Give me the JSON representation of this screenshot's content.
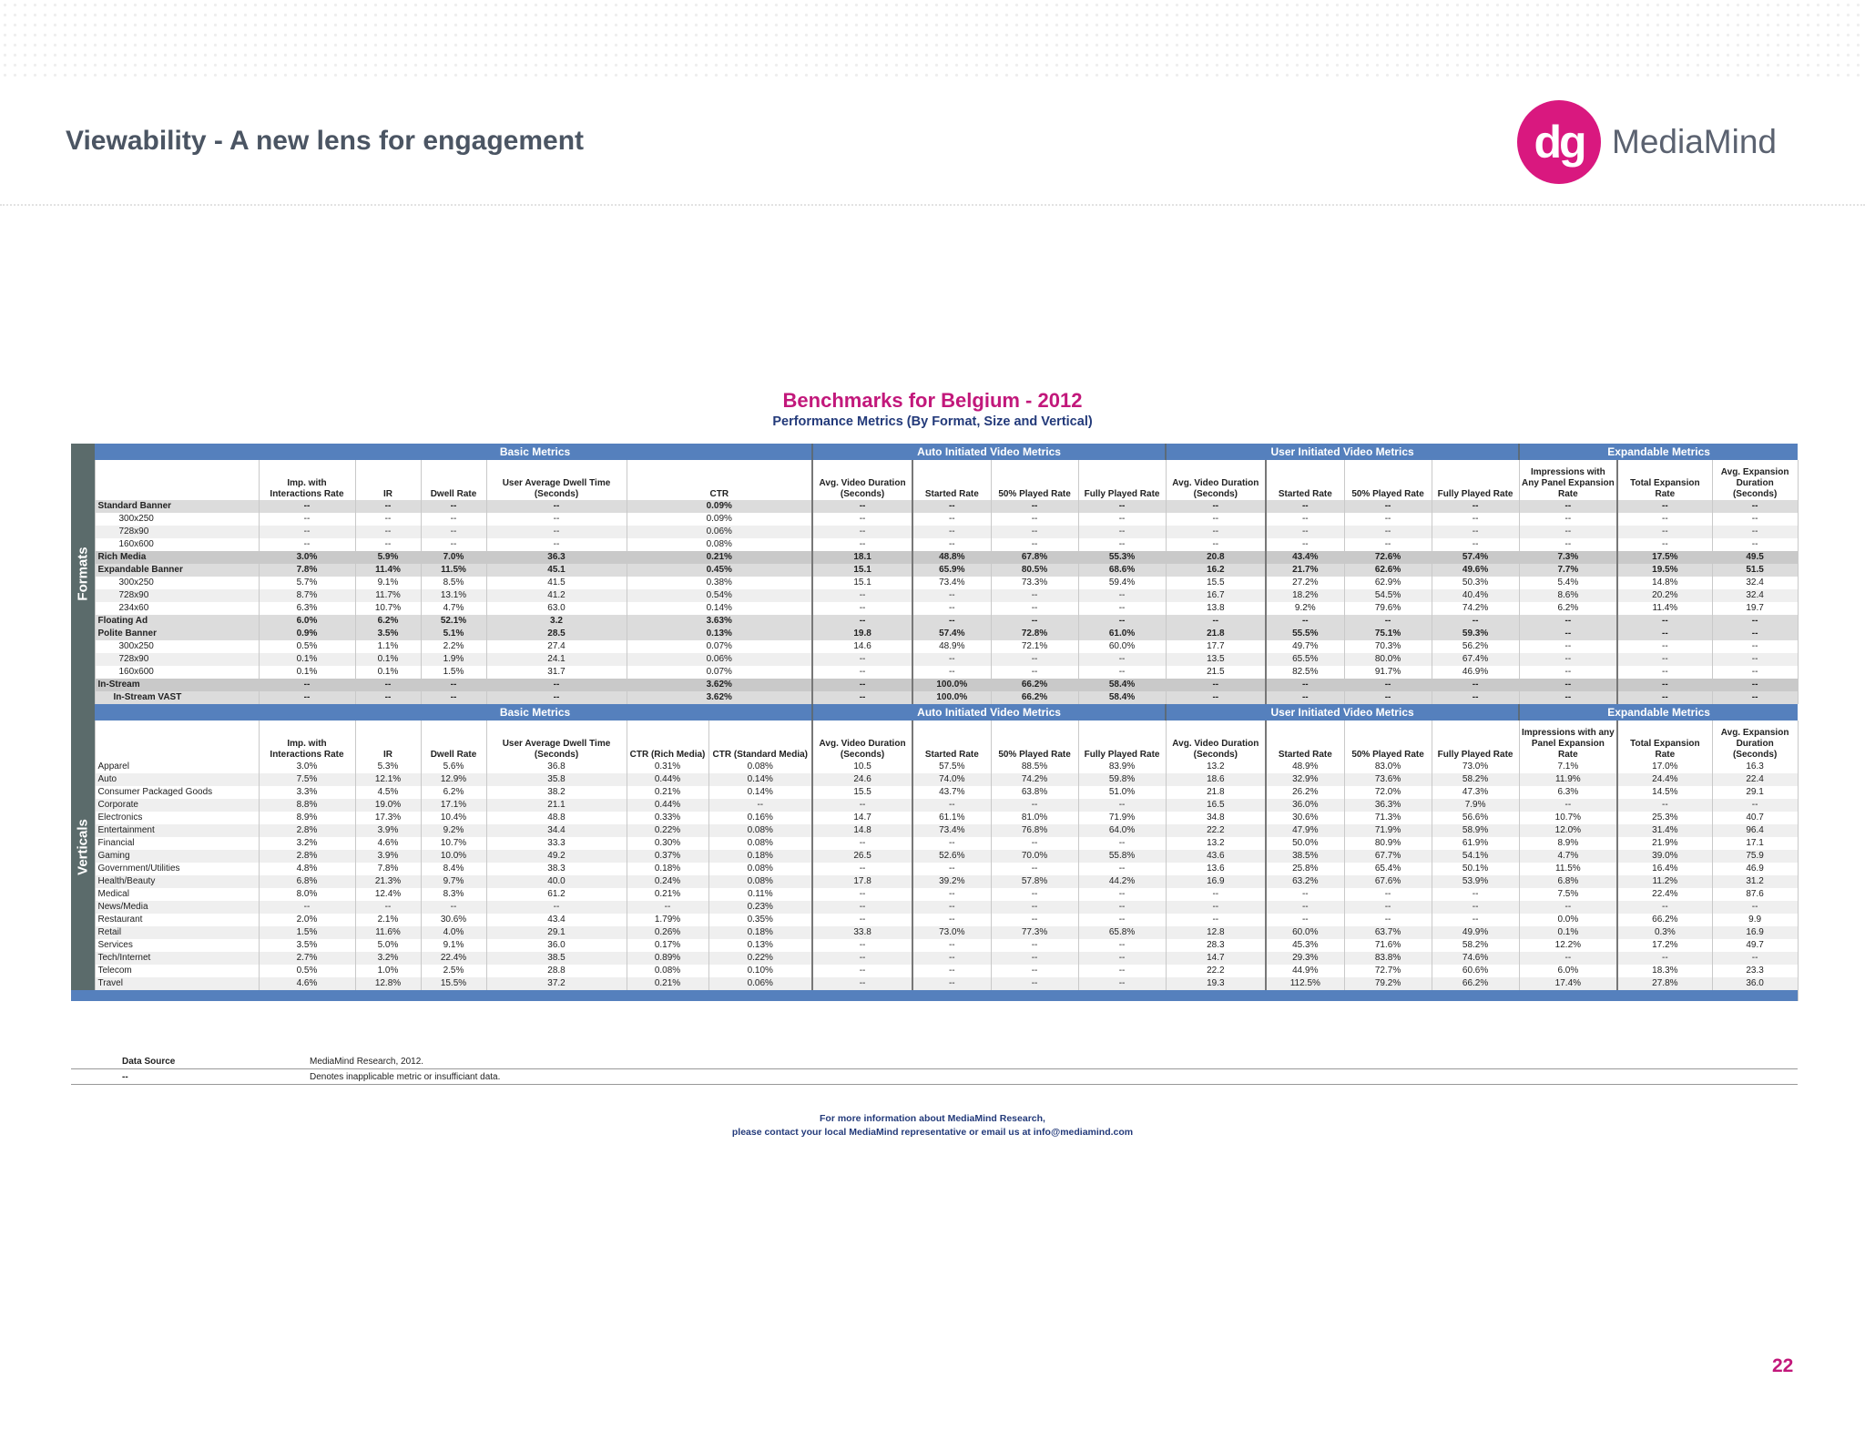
{
  "header": {
    "title": "Viewability - A new lens for engagement"
  },
  "logo": {
    "mark": "dg",
    "name": "MediaMind",
    "brand_color": "#d9187f"
  },
  "benchmark": {
    "title": "Benchmarks for Belgium - 2012",
    "subtitle": "Performance Metrics  (By Format, Size and Vertical)"
  },
  "section_labels": [
    "Basic Metrics",
    "Auto Initiated Video Metrics",
    "User Initiated Video Metrics",
    "Expandable Metrics"
  ],
  "side_labels": {
    "formats": "Formats",
    "verticals": "Verticals"
  },
  "formats": {
    "headers": [
      "",
      "Imp. with Interactions Rate",
      "IR",
      "Dwell Rate",
      "User Average Dwell Time (Seconds)",
      "CTR",
      "Avg. Video Duration (Seconds)",
      "Started Rate",
      "50% Played Rate",
      "Fully Played Rate",
      "Avg. Video Duration (Seconds)",
      "Started Rate",
      "50% Played Rate",
      "Fully Played Rate",
      "Impressions with Any Panel Expansion Rate",
      "Total Expansion Rate",
      "Avg. Expansion Duration (Seconds)"
    ],
    "rows": [
      {
        "style": "bold",
        "indent": 0,
        "cells": [
          "Standard Banner",
          "--",
          "--",
          "--",
          "--",
          "0.09%",
          "--",
          "--",
          "--",
          "--",
          "--",
          "--",
          "--",
          "--",
          "--",
          "--",
          "--"
        ]
      },
      {
        "style": "r0",
        "indent": 1,
        "cells": [
          "300x250",
          "--",
          "--",
          "--",
          "--",
          "0.09%",
          "--",
          "--",
          "--",
          "--",
          "--",
          "--",
          "--",
          "--",
          "--",
          "--",
          "--"
        ]
      },
      {
        "style": "r1",
        "indent": 1,
        "cells": [
          "728x90",
          "--",
          "--",
          "--",
          "--",
          "0.06%",
          "--",
          "--",
          "--",
          "--",
          "--",
          "--",
          "--",
          "--",
          "--",
          "--",
          "--"
        ]
      },
      {
        "style": "r0",
        "indent": 1,
        "cells": [
          "160x600",
          "--",
          "--",
          "--",
          "--",
          "0.08%",
          "--",
          "--",
          "--",
          "--",
          "--",
          "--",
          "--",
          "--",
          "--",
          "--",
          "--"
        ]
      },
      {
        "style": "bold2",
        "indent": 0,
        "cells": [
          "Rich Media",
          "3.0%",
          "5.9%",
          "7.0%",
          "36.3",
          "0.21%",
          "18.1",
          "48.8%",
          "67.8%",
          "55.3%",
          "20.8",
          "43.4%",
          "72.6%",
          "57.4%",
          "7.3%",
          "17.5%",
          "49.5"
        ]
      },
      {
        "style": "bold",
        "indent": 0,
        "cells": [
          "Expandable Banner",
          "7.8%",
          "11.4%",
          "11.5%",
          "45.1",
          "0.45%",
          "15.1",
          "65.9%",
          "80.5%",
          "68.6%",
          "16.2",
          "21.7%",
          "62.6%",
          "49.6%",
          "7.7%",
          "19.5%",
          "51.5"
        ]
      },
      {
        "style": "r0",
        "indent": 1,
        "cells": [
          "300x250",
          "5.7%",
          "9.1%",
          "8.5%",
          "41.5",
          "0.38%",
          "15.1",
          "73.4%",
          "73.3%",
          "59.4%",
          "15.5",
          "27.2%",
          "62.9%",
          "50.3%",
          "5.4%",
          "14.8%",
          "32.4"
        ]
      },
      {
        "style": "r1",
        "indent": 1,
        "cells": [
          "728x90",
          "8.7%",
          "11.7%",
          "13.1%",
          "41.2",
          "0.54%",
          "--",
          "--",
          "--",
          "--",
          "16.7",
          "18.2%",
          "54.5%",
          "40.4%",
          "8.6%",
          "20.2%",
          "32.4"
        ]
      },
      {
        "style": "r0",
        "indent": 1,
        "cells": [
          "234x60",
          "6.3%",
          "10.7%",
          "4.7%",
          "63.0",
          "0.14%",
          "--",
          "--",
          "--",
          "--",
          "13.8",
          "9.2%",
          "79.6%",
          "74.2%",
          "6.2%",
          "11.4%",
          "19.7"
        ]
      },
      {
        "style": "bold",
        "indent": 0,
        "cells": [
          "Floating Ad",
          "6.0%",
          "6.2%",
          "52.1%",
          "3.2",
          "3.63%",
          "--",
          "--",
          "--",
          "--",
          "--",
          "--",
          "--",
          "--",
          "--",
          "--",
          "--"
        ]
      },
      {
        "style": "bold",
        "indent": 0,
        "cells": [
          "Polite Banner",
          "0.9%",
          "3.5%",
          "5.1%",
          "28.5",
          "0.13%",
          "19.8",
          "57.4%",
          "72.8%",
          "61.0%",
          "21.8",
          "55.5%",
          "75.1%",
          "59.3%",
          "--",
          "--",
          "--"
        ]
      },
      {
        "style": "r0",
        "indent": 1,
        "cells": [
          "300x250",
          "0.5%",
          "1.1%",
          "2.2%",
          "27.4",
          "0.07%",
          "14.6",
          "48.9%",
          "72.1%",
          "60.0%",
          "17.7",
          "49.7%",
          "70.3%",
          "56.2%",
          "--",
          "--",
          "--"
        ]
      },
      {
        "style": "r1",
        "indent": 1,
        "cells": [
          "728x90",
          "0.1%",
          "0.1%",
          "1.9%",
          "24.1",
          "0.06%",
          "--",
          "--",
          "--",
          "--",
          "13.5",
          "65.5%",
          "80.0%",
          "67.4%",
          "--",
          "--",
          "--"
        ]
      },
      {
        "style": "r0",
        "indent": 1,
        "cells": [
          "160x600",
          "0.1%",
          "0.1%",
          "1.5%",
          "31.7",
          "0.07%",
          "--",
          "--",
          "--",
          "--",
          "21.5",
          "82.5%",
          "91.7%",
          "46.9%",
          "--",
          "--",
          "--"
        ]
      },
      {
        "style": "bold2",
        "indent": 0,
        "cells": [
          "In-Stream",
          "--",
          "--",
          "--",
          "--",
          "3.62%",
          "--",
          "100.0%",
          "66.2%",
          "58.4%",
          "--",
          "--",
          "--",
          "--",
          "--",
          "--",
          "--"
        ]
      },
      {
        "style": "bold",
        "indent": 2,
        "cells": [
          "In-Stream VAST",
          "--",
          "--",
          "--",
          "--",
          "3.62%",
          "--",
          "100.0%",
          "66.2%",
          "58.4%",
          "--",
          "--",
          "--",
          "--",
          "--",
          "--",
          "--"
        ]
      }
    ]
  },
  "verticals": {
    "headers": [
      "",
      "Imp. with Interactions Rate",
      "IR",
      "Dwell Rate",
      "User Average Dwell Time (Seconds)",
      "CTR (Rich Media)",
      "CTR (Standard Media)",
      "Avg. Video Duration (Seconds)",
      "Started Rate",
      "50% Played Rate",
      "Fully Played Rate",
      "Avg. Video Duration (Seconds)",
      "Started Rate",
      "50% Played Rate",
      "Fully Played Rate",
      "Impressions with any Panel Expansion Rate",
      "Total Expansion Rate",
      "Avg. Expansion Duration (Seconds)"
    ],
    "rows": [
      [
        "Apparel",
        "3.0%",
        "5.3%",
        "5.6%",
        "36.8",
        "0.31%",
        "0.08%",
        "10.5",
        "57.5%",
        "88.5%",
        "83.9%",
        "13.2",
        "48.9%",
        "83.0%",
        "73.0%",
        "7.1%",
        "17.0%",
        "16.3"
      ],
      [
        "Auto",
        "7.5%",
        "12.1%",
        "12.9%",
        "35.8",
        "0.44%",
        "0.14%",
        "24.6",
        "74.0%",
        "74.2%",
        "59.8%",
        "18.6",
        "32.9%",
        "73.6%",
        "58.2%",
        "11.9%",
        "24.4%",
        "22.4"
      ],
      [
        "Consumer Packaged Goods",
        "3.3%",
        "4.5%",
        "6.2%",
        "38.2",
        "0.21%",
        "0.14%",
        "15.5",
        "43.7%",
        "63.8%",
        "51.0%",
        "21.8",
        "26.2%",
        "72.0%",
        "47.3%",
        "6.3%",
        "14.5%",
        "29.1"
      ],
      [
        "Corporate",
        "8.8%",
        "19.0%",
        "17.1%",
        "21.1",
        "0.44%",
        "--",
        "--",
        "--",
        "--",
        "--",
        "16.5",
        "36.0%",
        "36.3%",
        "7.9%",
        "--",
        "--",
        "--"
      ],
      [
        "Electronics",
        "8.9%",
        "17.3%",
        "10.4%",
        "48.8",
        "0.33%",
        "0.16%",
        "14.7",
        "61.1%",
        "81.0%",
        "71.9%",
        "34.8",
        "30.6%",
        "71.3%",
        "56.6%",
        "10.7%",
        "25.3%",
        "40.7"
      ],
      [
        "Entertainment",
        "2.8%",
        "3.9%",
        "9.2%",
        "34.4",
        "0.22%",
        "0.08%",
        "14.8",
        "73.4%",
        "76.8%",
        "64.0%",
        "22.2",
        "47.9%",
        "71.9%",
        "58.9%",
        "12.0%",
        "31.4%",
        "96.4"
      ],
      [
        "Financial",
        "3.2%",
        "4.6%",
        "10.7%",
        "33.3",
        "0.30%",
        "0.08%",
        "--",
        "--",
        "--",
        "--",
        "13.2",
        "50.0%",
        "80.9%",
        "61.9%",
        "8.9%",
        "21.9%",
        "17.1"
      ],
      [
        "Gaming",
        "2.8%",
        "3.9%",
        "10.0%",
        "49.2",
        "0.37%",
        "0.18%",
        "26.5",
        "52.6%",
        "70.0%",
        "55.8%",
        "43.6",
        "38.5%",
        "67.7%",
        "54.1%",
        "4.7%",
        "39.0%",
        "75.9"
      ],
      [
        "Government/Utilities",
        "4.8%",
        "7.8%",
        "8.4%",
        "38.3",
        "0.18%",
        "0.08%",
        "--",
        "--",
        "--",
        "--",
        "13.6",
        "25.8%",
        "65.4%",
        "50.1%",
        "11.5%",
        "16.4%",
        "46.9"
      ],
      [
        "Health/Beauty",
        "6.8%",
        "21.3%",
        "9.7%",
        "40.0",
        "0.24%",
        "0.08%",
        "17.8",
        "39.2%",
        "57.8%",
        "44.2%",
        "16.9",
        "63.2%",
        "67.6%",
        "53.9%",
        "6.8%",
        "11.2%",
        "31.2"
      ],
      [
        "Medical",
        "8.0%",
        "12.4%",
        "8.3%",
        "61.2",
        "0.21%",
        "0.11%",
        "--",
        "--",
        "--",
        "--",
        "--",
        "--",
        "--",
        "--",
        "7.5%",
        "22.4%",
        "87.6"
      ],
      [
        "News/Media",
        "--",
        "--",
        "--",
        "--",
        "--",
        "0.23%",
        "--",
        "--",
        "--",
        "--",
        "--",
        "--",
        "--",
        "--",
        "--",
        "--",
        "--"
      ],
      [
        "Restaurant",
        "2.0%",
        "2.1%",
        "30.6%",
        "43.4",
        "1.79%",
        "0.35%",
        "--",
        "--",
        "--",
        "--",
        "--",
        "--",
        "--",
        "--",
        "0.0%",
        "66.2%",
        "9.9"
      ],
      [
        "Retail",
        "1.5%",
        "11.6%",
        "4.0%",
        "29.1",
        "0.26%",
        "0.18%",
        "33.8",
        "73.0%",
        "77.3%",
        "65.8%",
        "12.8",
        "60.0%",
        "63.7%",
        "49.9%",
        "0.1%",
        "0.3%",
        "16.9"
      ],
      [
        "Services",
        "3.5%",
        "5.0%",
        "9.1%",
        "36.0",
        "0.17%",
        "0.13%",
        "--",
        "--",
        "--",
        "--",
        "28.3",
        "45.3%",
        "71.6%",
        "58.2%",
        "12.2%",
        "17.2%",
        "49.7"
      ],
      [
        "Tech/Internet",
        "2.7%",
        "3.2%",
        "22.4%",
        "38.5",
        "0.89%",
        "0.22%",
        "--",
        "--",
        "--",
        "--",
        "14.7",
        "29.3%",
        "83.8%",
        "74.6%",
        "--",
        "--",
        "--"
      ],
      [
        "Telecom",
        "0.5%",
        "1.0%",
        "2.5%",
        "28.8",
        "0.08%",
        "0.10%",
        "--",
        "--",
        "--",
        "--",
        "22.2",
        "44.9%",
        "72.7%",
        "60.6%",
        "6.0%",
        "18.3%",
        "23.3"
      ],
      [
        "Travel",
        "4.6%",
        "12.8%",
        "15.5%",
        "37.2",
        "0.21%",
        "0.06%",
        "--",
        "--",
        "--",
        "--",
        "19.3",
        "112.5%",
        "79.2%",
        "66.2%",
        "17.4%",
        "27.8%",
        "36.0"
      ]
    ]
  },
  "source": [
    {
      "key": "Data Source",
      "value": "MediaMind Research, 2012."
    },
    {
      "key": "--",
      "value": "Denotes inapplicable metric or insufficiant data."
    }
  ],
  "contact": {
    "line1": "For more information about MediaMind Research,",
    "line2": "please contact your local MediaMind representative or email us at info@mediamind.com"
  },
  "page_number": "22"
}
